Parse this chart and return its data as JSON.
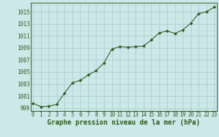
{
  "x": [
    0,
    1,
    2,
    3,
    4,
    5,
    6,
    7,
    8,
    9,
    10,
    11,
    12,
    13,
    14,
    15,
    16,
    17,
    18,
    19,
    20,
    21,
    22,
    23
  ],
  "y": [
    999.8,
    999.2,
    999.3,
    999.6,
    1001.5,
    1003.2,
    1003.6,
    1004.5,
    1005.2,
    1006.5,
    1008.8,
    1009.2,
    1009.1,
    1009.2,
    1009.3,
    1010.3,
    1011.5,
    1011.8,
    1011.4,
    1012.0,
    1013.1,
    1014.7,
    1015.0,
    1015.8
  ],
  "xlabel": "Graphe pression niveau de la mer (hPa)",
  "line_color": "#2d5a1b",
  "marker_color": "#2d5a1b",
  "bg_color": "#cce8e8",
  "grid_major_color": "#aacccc",
  "grid_minor_color": "#bbdddd",
  "ylim": [
    998.5,
    1016.5
  ],
  "xlim": [
    -0.3,
    23.3
  ],
  "yticks": [
    999,
    1001,
    1003,
    1005,
    1007,
    1009,
    1011,
    1013,
    1015
  ],
  "xticks": [
    0,
    1,
    2,
    3,
    4,
    5,
    6,
    7,
    8,
    9,
    10,
    11,
    12,
    13,
    14,
    15,
    16,
    17,
    18,
    19,
    20,
    21,
    22,
    23
  ],
  "tick_fontsize": 5.5,
  "xlabel_fontsize": 7.0,
  "xlabel_fontweight": "bold"
}
